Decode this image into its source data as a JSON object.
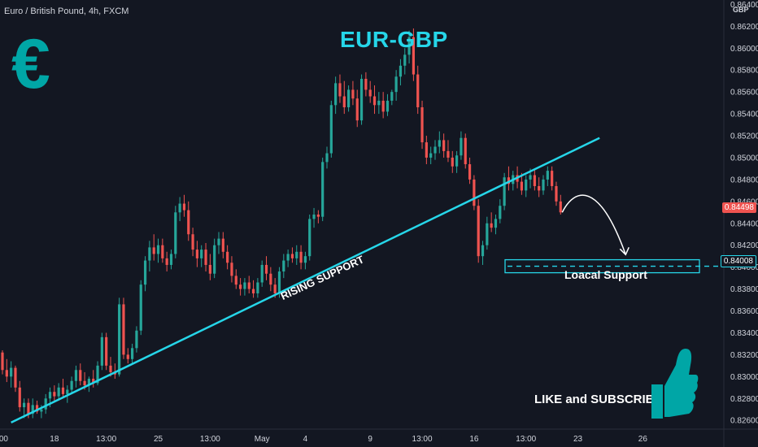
{
  "header": {
    "symbol_title": "Euro / British Pound, 4h, FXCM",
    "currency": "GBP"
  },
  "overlay": {
    "pair_title": "EUR-GBP",
    "logo_glyph": "€",
    "rising_label": "RISING SUPPORT",
    "support_label": "Loacal Support",
    "cta": "LIKE and SUBSCRIBE",
    "support_level": 0.84008,
    "rising_line": {
      "from": {
        "index": 2,
        "price": 0.8258
      },
      "to": {
        "index": 138,
        "price": 0.8518
      }
    }
  },
  "price_tags": {
    "last": "0.84498",
    "support": "0.84008"
  },
  "colors": {
    "background": "#131722",
    "up": "#26a69a",
    "down": "#ef5350",
    "accent": "#26d6e9",
    "logo": "#00a6a6"
  },
  "chart_data": {
    "type": "candlestick",
    "title": "Euro / British Pound, 4h, FXCM",
    "ylim": [
      0.8252,
      0.8644
    ],
    "y_ticks": [
      "0.82600",
      "0.82800",
      "0.83000",
      "0.83200",
      "0.83400",
      "0.83600",
      "0.83800",
      "0.84000",
      "0.84200",
      "0.84400",
      "0.84600",
      "0.84800",
      "0.85000",
      "0.85200",
      "0.85400",
      "0.85600",
      "0.85800",
      "0.86000",
      "0.86200",
      "0.86400"
    ],
    "x_ticks": [
      {
        "label": ":00",
        "index": 0
      },
      {
        "label": "18",
        "index": 12
      },
      {
        "label": "13:00",
        "index": 24
      },
      {
        "label": "25",
        "index": 36
      },
      {
        "label": "13:00",
        "index": 48
      },
      {
        "label": "May",
        "index": 60
      },
      {
        "label": "4",
        "index": 70
      },
      {
        "label": "9",
        "index": 85
      },
      {
        "label": "13:00",
        "index": 97
      },
      {
        "label": "16",
        "index": 109
      },
      {
        "label": "13:00",
        "index": 121
      },
      {
        "label": "23",
        "index": 133
      },
      {
        "label": "26",
        "index": 148
      }
    ],
    "candles": [
      [
        0.8322,
        0.8324,
        0.8302,
        0.8306
      ],
      [
        0.8306,
        0.8316,
        0.8295,
        0.83
      ],
      [
        0.83,
        0.8314,
        0.829,
        0.8308
      ],
      [
        0.8308,
        0.831,
        0.8286,
        0.829
      ],
      [
        0.829,
        0.8296,
        0.8268,
        0.8272
      ],
      [
        0.8272,
        0.828,
        0.8262,
        0.8276
      ],
      [
        0.8276,
        0.828,
        0.8262,
        0.8266
      ],
      [
        0.8266,
        0.828,
        0.8262,
        0.8274
      ],
      [
        0.8274,
        0.8278,
        0.8266,
        0.8268
      ],
      [
        0.8268,
        0.8274,
        0.8262,
        0.827
      ],
      [
        0.827,
        0.8284,
        0.8266,
        0.828
      ],
      [
        0.828,
        0.829,
        0.8272,
        0.8286
      ],
      [
        0.8286,
        0.8292,
        0.8278,
        0.8282
      ],
      [
        0.8282,
        0.8294,
        0.8278,
        0.829
      ],
      [
        0.829,
        0.8298,
        0.828,
        0.8284
      ],
      [
        0.8284,
        0.8292,
        0.8276,
        0.8288
      ],
      [
        0.8288,
        0.83,
        0.8284,
        0.8296
      ],
      [
        0.8296,
        0.831,
        0.829,
        0.8306
      ],
      [
        0.8306,
        0.8312,
        0.8292,
        0.8296
      ],
      [
        0.8296,
        0.8304,
        0.8288,
        0.8292
      ],
      [
        0.8292,
        0.83,
        0.8286,
        0.8298
      ],
      [
        0.8298,
        0.8306,
        0.829,
        0.8294
      ],
      [
        0.8294,
        0.8314,
        0.8292,
        0.831
      ],
      [
        0.831,
        0.834,
        0.8306,
        0.8336
      ],
      [
        0.8336,
        0.834,
        0.8306,
        0.831
      ],
      [
        0.831,
        0.8318,
        0.83,
        0.8304
      ],
      [
        0.8304,
        0.8312,
        0.8298,
        0.8302
      ],
      [
        0.8302,
        0.8372,
        0.83,
        0.8366
      ],
      [
        0.8366,
        0.8372,
        0.8316,
        0.832
      ],
      [
        0.832,
        0.8326,
        0.8312,
        0.8316
      ],
      [
        0.8316,
        0.833,
        0.8312,
        0.8326
      ],
      [
        0.8326,
        0.8346,
        0.8322,
        0.8342
      ],
      [
        0.8342,
        0.8388,
        0.8338,
        0.8384
      ],
      [
        0.8384,
        0.841,
        0.8378,
        0.8406
      ],
      [
        0.8406,
        0.8424,
        0.8396,
        0.8418
      ],
      [
        0.8418,
        0.843,
        0.8406,
        0.8412
      ],
      [
        0.8412,
        0.8426,
        0.8404,
        0.842
      ],
      [
        0.842,
        0.8426,
        0.8404,
        0.8408
      ],
      [
        0.8408,
        0.8414,
        0.8396,
        0.8402
      ],
      [
        0.8402,
        0.8416,
        0.8398,
        0.8412
      ],
      [
        0.8412,
        0.8456,
        0.8408,
        0.845
      ],
      [
        0.845,
        0.8464,
        0.8442,
        0.8458
      ],
      [
        0.8458,
        0.8466,
        0.8446,
        0.8452
      ],
      [
        0.8452,
        0.846,
        0.8424,
        0.843
      ],
      [
        0.843,
        0.8436,
        0.841,
        0.8416
      ],
      [
        0.8416,
        0.8424,
        0.84,
        0.8408
      ],
      [
        0.8408,
        0.842,
        0.84,
        0.8416
      ],
      [
        0.8416,
        0.8422,
        0.8396,
        0.8402
      ],
      [
        0.8402,
        0.8412,
        0.8388,
        0.8394
      ],
      [
        0.8394,
        0.8426,
        0.839,
        0.842
      ],
      [
        0.842,
        0.8432,
        0.8412,
        0.8426
      ],
      [
        0.8426,
        0.8432,
        0.8408,
        0.8414
      ],
      [
        0.8414,
        0.842,
        0.8398,
        0.8404
      ],
      [
        0.8404,
        0.841,
        0.8386,
        0.8392
      ],
      [
        0.8392,
        0.8398,
        0.838,
        0.8384
      ],
      [
        0.8384,
        0.839,
        0.8374,
        0.838
      ],
      [
        0.838,
        0.839,
        0.8374,
        0.8386
      ],
      [
        0.8386,
        0.8392,
        0.8376,
        0.838
      ],
      [
        0.838,
        0.8388,
        0.8372,
        0.8376
      ],
      [
        0.8376,
        0.839,
        0.8372,
        0.8386
      ],
      [
        0.8386,
        0.8406,
        0.8382,
        0.8402
      ],
      [
        0.8402,
        0.841,
        0.8388,
        0.8394
      ],
      [
        0.8394,
        0.84,
        0.8378,
        0.8384
      ],
      [
        0.8384,
        0.839,
        0.8372,
        0.8376
      ],
      [
        0.8376,
        0.84,
        0.8372,
        0.8396
      ],
      [
        0.8396,
        0.8412,
        0.839,
        0.8406
      ],
      [
        0.8406,
        0.8416,
        0.84,
        0.8412
      ],
      [
        0.8412,
        0.8418,
        0.8404,
        0.8408
      ],
      [
        0.8408,
        0.842,
        0.8402,
        0.8414
      ],
      [
        0.8414,
        0.842,
        0.8398,
        0.8404
      ],
      [
        0.8404,
        0.8414,
        0.8398,
        0.841
      ],
      [
        0.841,
        0.8448,
        0.8406,
        0.8444
      ],
      [
        0.8444,
        0.8454,
        0.8436,
        0.8448
      ],
      [
        0.8448,
        0.8452,
        0.844,
        0.8446
      ],
      [
        0.8446,
        0.85,
        0.8442,
        0.8496
      ],
      [
        0.8496,
        0.851,
        0.849,
        0.8504
      ],
      [
        0.8504,
        0.8552,
        0.85,
        0.8548
      ],
      [
        0.8548,
        0.8574,
        0.854,
        0.8568
      ],
      [
        0.8568,
        0.8576,
        0.855,
        0.8556
      ],
      [
        0.8556,
        0.857,
        0.854,
        0.8546
      ],
      [
        0.8546,
        0.8566,
        0.8542,
        0.8562
      ],
      [
        0.8562,
        0.857,
        0.8548,
        0.8554
      ],
      [
        0.8554,
        0.8562,
        0.8528,
        0.8534
      ],
      [
        0.8534,
        0.8576,
        0.853,
        0.8572
      ],
      [
        0.8572,
        0.8578,
        0.8556,
        0.8562
      ],
      [
        0.8562,
        0.857,
        0.855,
        0.8556
      ],
      [
        0.8556,
        0.8566,
        0.854,
        0.8548
      ],
      [
        0.8548,
        0.856,
        0.854,
        0.8552
      ],
      [
        0.8552,
        0.856,
        0.8536,
        0.8542
      ],
      [
        0.8542,
        0.8558,
        0.8538,
        0.8552
      ],
      [
        0.8552,
        0.8562,
        0.8548,
        0.856
      ],
      [
        0.856,
        0.858,
        0.8552,
        0.8574
      ],
      [
        0.8574,
        0.859,
        0.8566,
        0.8584
      ],
      [
        0.8584,
        0.86,
        0.8576,
        0.8594
      ],
      [
        0.8594,
        0.8616,
        0.8586,
        0.861
      ],
      [
        0.861,
        0.8618,
        0.857,
        0.8576
      ],
      [
        0.8576,
        0.8584,
        0.854,
        0.8546
      ],
      [
        0.8546,
        0.8552,
        0.8508,
        0.8514
      ],
      [
        0.8514,
        0.852,
        0.8494,
        0.85
      ],
      [
        0.85,
        0.851,
        0.8494,
        0.8504
      ],
      [
        0.8504,
        0.8516,
        0.8498,
        0.851
      ],
      [
        0.851,
        0.8524,
        0.8504,
        0.8516
      ],
      [
        0.8516,
        0.8522,
        0.85,
        0.8506
      ],
      [
        0.8506,
        0.8516,
        0.8496,
        0.85
      ],
      [
        0.85,
        0.8506,
        0.8486,
        0.8492
      ],
      [
        0.8492,
        0.8506,
        0.8486,
        0.8502
      ],
      [
        0.8502,
        0.8524,
        0.8498,
        0.8518
      ],
      [
        0.8518,
        0.8522,
        0.849,
        0.8494
      ],
      [
        0.8494,
        0.85,
        0.8476,
        0.848
      ],
      [
        0.848,
        0.8484,
        0.8452,
        0.8456
      ],
      [
        0.8456,
        0.8462,
        0.8404,
        0.841
      ],
      [
        0.841,
        0.8424,
        0.8402,
        0.842
      ],
      [
        0.842,
        0.8446,
        0.8416,
        0.844
      ],
      [
        0.844,
        0.845,
        0.8432,
        0.8436
      ],
      [
        0.8436,
        0.8448,
        0.843,
        0.8444
      ],
      [
        0.8444,
        0.8462,
        0.844,
        0.8456
      ],
      [
        0.8456,
        0.8486,
        0.8452,
        0.8482
      ],
      [
        0.8482,
        0.8492,
        0.847,
        0.8476
      ],
      [
        0.8476,
        0.8488,
        0.847,
        0.8484
      ],
      [
        0.8484,
        0.8492,
        0.8472,
        0.8478
      ],
      [
        0.8478,
        0.8486,
        0.8466,
        0.847
      ],
      [
        0.847,
        0.8484,
        0.8464,
        0.848
      ],
      [
        0.848,
        0.849,
        0.8472,
        0.8484
      ],
      [
        0.8484,
        0.849,
        0.847,
        0.8474
      ],
      [
        0.8474,
        0.8482,
        0.8464,
        0.847
      ],
      [
        0.847,
        0.8484,
        0.8466,
        0.848
      ],
      [
        0.848,
        0.8492,
        0.8474,
        0.8488
      ],
      [
        0.8488,
        0.8492,
        0.847,
        0.8474
      ],
      [
        0.8474,
        0.8478,
        0.8456,
        0.846
      ],
      [
        0.846,
        0.8466,
        0.8448,
        0.845
      ]
    ]
  }
}
